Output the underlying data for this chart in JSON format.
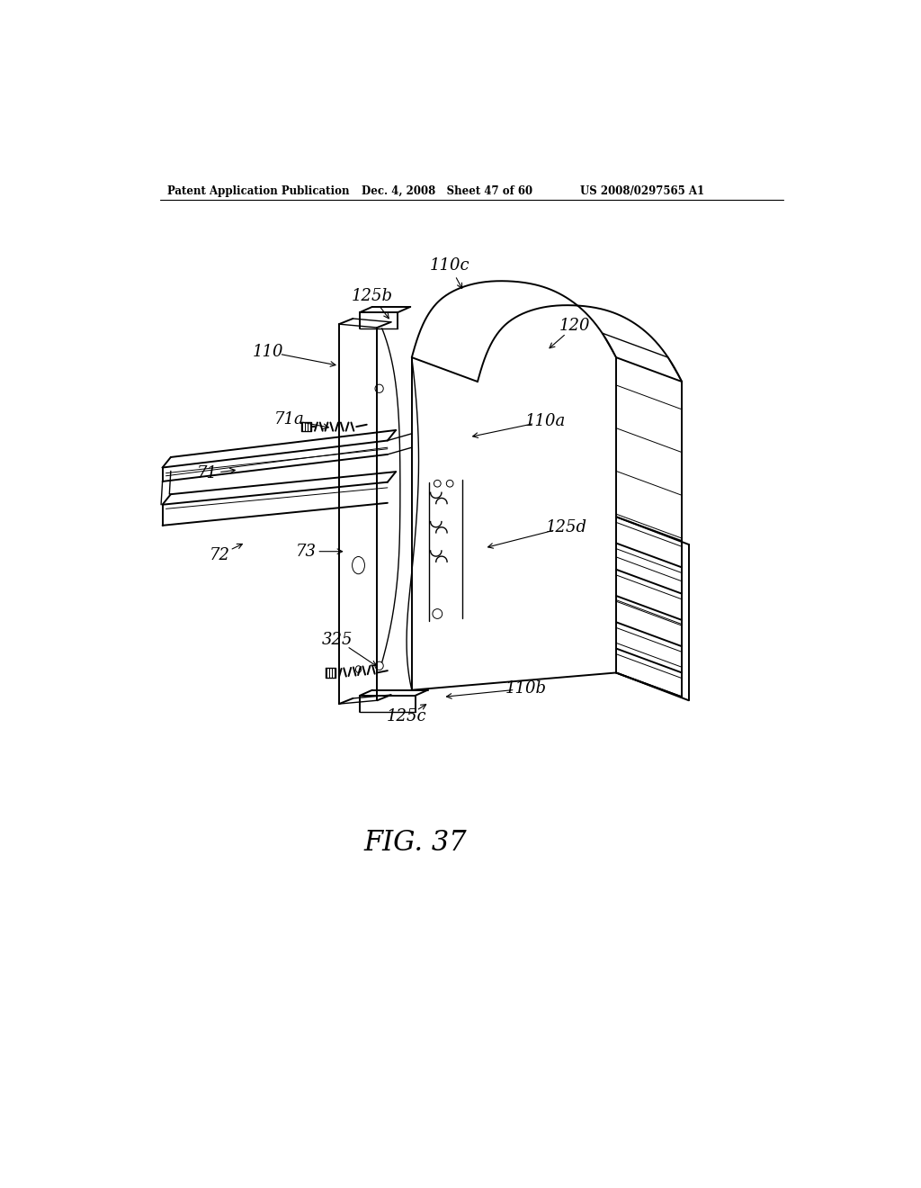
{
  "title_left": "Patent Application Publication",
  "title_mid": "Dec. 4, 2008   Sheet 47 of 60",
  "title_right": "US 2008/0297565 A1",
  "fig_label": "FIG. 37",
  "background_color": "#ffffff",
  "line_color": "#000000",
  "lw_main": 1.4,
  "lw_med": 1.0,
  "lw_thin": 0.7,
  "labels": [
    [
      "110c",
      480,
      178,
      500,
      215
    ],
    [
      "125b",
      368,
      222,
      395,
      258
    ],
    [
      "110",
      218,
      302,
      320,
      322
    ],
    [
      "71a",
      248,
      400,
      310,
      412
    ],
    [
      "71",
      130,
      478,
      175,
      472
    ],
    [
      "72",
      148,
      595,
      185,
      577
    ],
    [
      "73",
      272,
      590,
      330,
      590
    ],
    [
      "325",
      318,
      718,
      378,
      758
    ],
    [
      "125c",
      418,
      828,
      450,
      808
    ],
    [
      "110b",
      590,
      788,
      470,
      800
    ],
    [
      "110a",
      618,
      402,
      508,
      425
    ],
    [
      "120",
      660,
      265,
      620,
      300
    ],
    [
      "125d",
      648,
      555,
      530,
      585
    ]
  ]
}
